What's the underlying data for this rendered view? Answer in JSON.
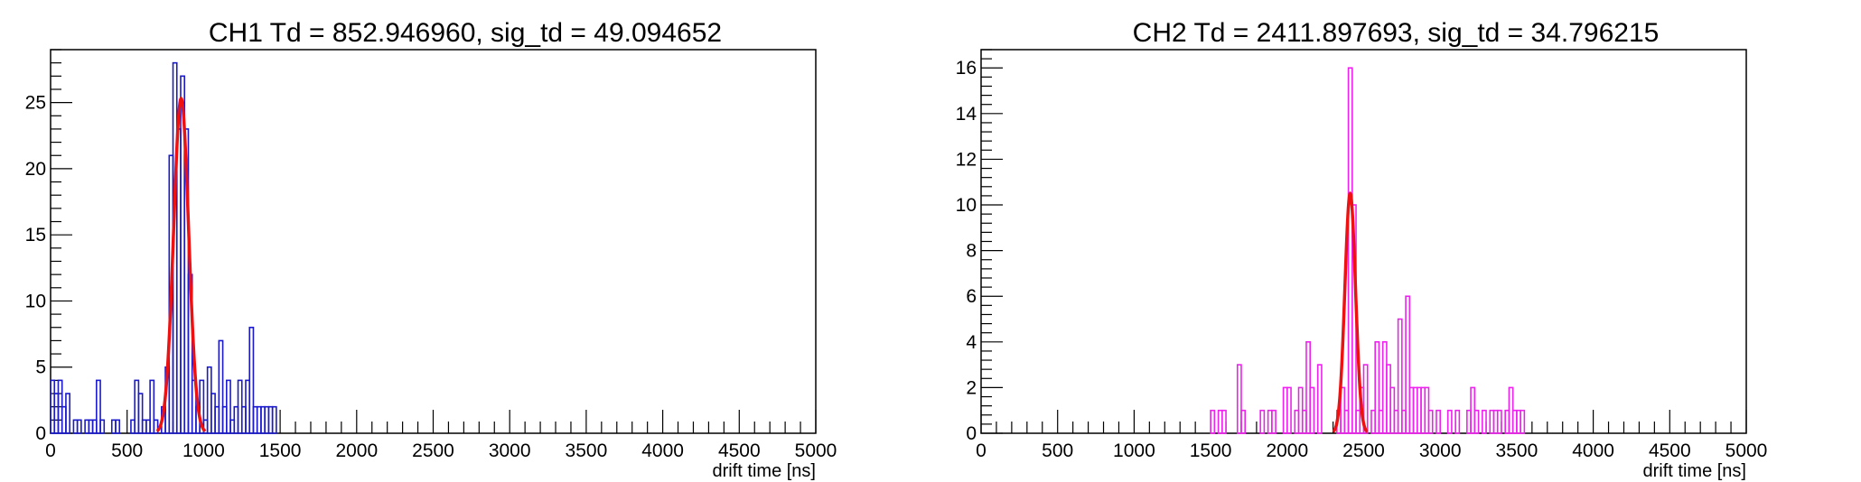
{
  "chart_data": [
    {
      "type": "histogram",
      "title": "CH1 Td = 852.946960, sig_td = 49.094652",
      "xlabel": "drift time [ns]",
      "ylabel": "",
      "xlim": [
        0,
        5000
      ],
      "ylim": [
        0,
        29
      ],
      "x_ticks": [
        0,
        500,
        1000,
        1500,
        2000,
        2500,
        3000,
        3500,
        4000,
        4500,
        5000
      ],
      "x_tick_labels": [
        "0",
        "500",
        "1000",
        "1500",
        "2000",
        "2500",
        "3000",
        "3500",
        "4000",
        "4500",
        "5000"
      ],
      "y_ticks": [
        0,
        5,
        10,
        15,
        20,
        25
      ],
      "y_tick_labels": [
        "0",
        "5",
        "10",
        "15",
        "20",
        "25"
      ],
      "grid": false,
      "hist_color": "#1a1acc",
      "fit_color": "#ee1111",
      "hist": {
        "bin_width": 25,
        "bins": [
          [
            0,
            4
          ],
          [
            25,
            3
          ],
          [
            50,
            4
          ],
          [
            75,
            2
          ],
          [
            100,
            3
          ],
          [
            125,
            0
          ],
          [
            150,
            1
          ],
          [
            175,
            1
          ],
          [
            200,
            0
          ],
          [
            225,
            1
          ],
          [
            250,
            1
          ],
          [
            275,
            1
          ],
          [
            300,
            4
          ],
          [
            325,
            1
          ],
          [
            350,
            0
          ],
          [
            375,
            0
          ],
          [
            400,
            1
          ],
          [
            425,
            1
          ],
          [
            450,
            0
          ],
          [
            475,
            0
          ],
          [
            500,
            0
          ],
          [
            525,
            1
          ],
          [
            550,
            4
          ],
          [
            575,
            3
          ],
          [
            600,
            1
          ],
          [
            625,
            1
          ],
          [
            650,
            4
          ],
          [
            675,
            1
          ],
          [
            700,
            0
          ],
          [
            725,
            2
          ],
          [
            750,
            5
          ],
          [
            775,
            21
          ],
          [
            800,
            28
          ],
          [
            825,
            23
          ],
          [
            850,
            27
          ],
          [
            875,
            23
          ],
          [
            900,
            12
          ],
          [
            925,
            4
          ],
          [
            950,
            2
          ],
          [
            975,
            4
          ],
          [
            1000,
            1
          ],
          [
            1025,
            5
          ],
          [
            1050,
            3
          ],
          [
            1075,
            2
          ],
          [
            1100,
            7
          ],
          [
            1125,
            2
          ],
          [
            1150,
            4
          ],
          [
            1175,
            1
          ],
          [
            1200,
            2
          ],
          [
            1225,
            4
          ],
          [
            1250,
            2
          ],
          [
            1275,
            4
          ],
          [
            1300,
            8
          ],
          [
            1325,
            2
          ],
          [
            1350,
            2
          ],
          [
            1375,
            2
          ],
          [
            1400,
            2
          ],
          [
            1425,
            2
          ],
          [
            1450,
            2
          ],
          [
            1475,
            0
          ]
        ]
      },
      "fit": {
        "function": "gaus",
        "mean": 852.94696,
        "sigma": 49.094652,
        "amplitude": 25.3
      }
    },
    {
      "type": "histogram",
      "title": "CH2 Td = 2411.897693, sig_td = 34.796215",
      "xlabel": "drift time [ns]",
      "ylabel": "",
      "xlim": [
        0,
        5000
      ],
      "ylim": [
        0,
        16.8
      ],
      "x_ticks": [
        0,
        500,
        1000,
        1500,
        2000,
        2500,
        3000,
        3500,
        4000,
        4500,
        5000
      ],
      "x_tick_labels": [
        "0",
        "500",
        "1000",
        "1500",
        "2000",
        "2500",
        "3000",
        "3500",
        "4000",
        "4500",
        "5000"
      ],
      "y_ticks": [
        0,
        2,
        4,
        6,
        8,
        10,
        12,
        14,
        16
      ],
      "y_tick_labels": [
        "0",
        "2",
        "4",
        "6",
        "8",
        "10",
        "12",
        "14",
        "16"
      ],
      "grid": false,
      "hist_color": "#ee22ee",
      "fit_color": "#ee1111",
      "hist": {
        "bin_width": 25,
        "bins": [
          [
            1500,
            1
          ],
          [
            1525,
            0
          ],
          [
            1550,
            1
          ],
          [
            1575,
            1
          ],
          [
            1600,
            0
          ],
          [
            1625,
            0
          ],
          [
            1650,
            0
          ],
          [
            1675,
            3
          ],
          [
            1700,
            1
          ],
          [
            1725,
            0
          ],
          [
            1750,
            0
          ],
          [
            1775,
            0
          ],
          [
            1800,
            0
          ],
          [
            1825,
            1
          ],
          [
            1850,
            0
          ],
          [
            1875,
            1
          ],
          [
            1900,
            1
          ],
          [
            1925,
            0
          ],
          [
            1950,
            0
          ],
          [
            1975,
            2
          ],
          [
            2000,
            2
          ],
          [
            2025,
            0
          ],
          [
            2050,
            1
          ],
          [
            2075,
            2
          ],
          [
            2100,
            1
          ],
          [
            2125,
            4
          ],
          [
            2150,
            2
          ],
          [
            2175,
            0
          ],
          [
            2200,
            3
          ],
          [
            2225,
            0
          ],
          [
            2250,
            0
          ],
          [
            2275,
            0
          ],
          [
            2300,
            0
          ],
          [
            2325,
            1
          ],
          [
            2350,
            2
          ],
          [
            2375,
            1
          ],
          [
            2400,
            16
          ],
          [
            2425,
            10
          ],
          [
            2450,
            1
          ],
          [
            2475,
            2
          ],
          [
            2500,
            3
          ],
          [
            2525,
            0
          ],
          [
            2550,
            1
          ],
          [
            2575,
            4
          ],
          [
            2600,
            1
          ],
          [
            2625,
            4
          ],
          [
            2650,
            3
          ],
          [
            2675,
            2
          ],
          [
            2700,
            1
          ],
          [
            2725,
            5
          ],
          [
            2750,
            1
          ],
          [
            2775,
            6
          ],
          [
            2800,
            2
          ],
          [
            2825,
            2
          ],
          [
            2850,
            2
          ],
          [
            2875,
            2
          ],
          [
            2900,
            2
          ],
          [
            2925,
            1
          ],
          [
            2950,
            0
          ],
          [
            2975,
            1
          ],
          [
            3000,
            0
          ],
          [
            3025,
            0
          ],
          [
            3050,
            1
          ],
          [
            3075,
            0
          ],
          [
            3100,
            1
          ],
          [
            3125,
            0
          ],
          [
            3150,
            0
          ],
          [
            3175,
            1
          ],
          [
            3200,
            2
          ],
          [
            3225,
            1
          ],
          [
            3250,
            0
          ],
          [
            3275,
            1
          ],
          [
            3300,
            0
          ],
          [
            3325,
            1
          ],
          [
            3350,
            1
          ],
          [
            3375,
            1
          ],
          [
            3400,
            0
          ],
          [
            3425,
            1
          ],
          [
            3450,
            2
          ],
          [
            3475,
            1
          ],
          [
            3500,
            1
          ],
          [
            3525,
            1
          ],
          [
            3550,
            0
          ]
        ]
      },
      "fit": {
        "function": "gaus",
        "mean": 2411.897693,
        "sigma": 34.796215,
        "amplitude": 10.5
      }
    }
  ]
}
